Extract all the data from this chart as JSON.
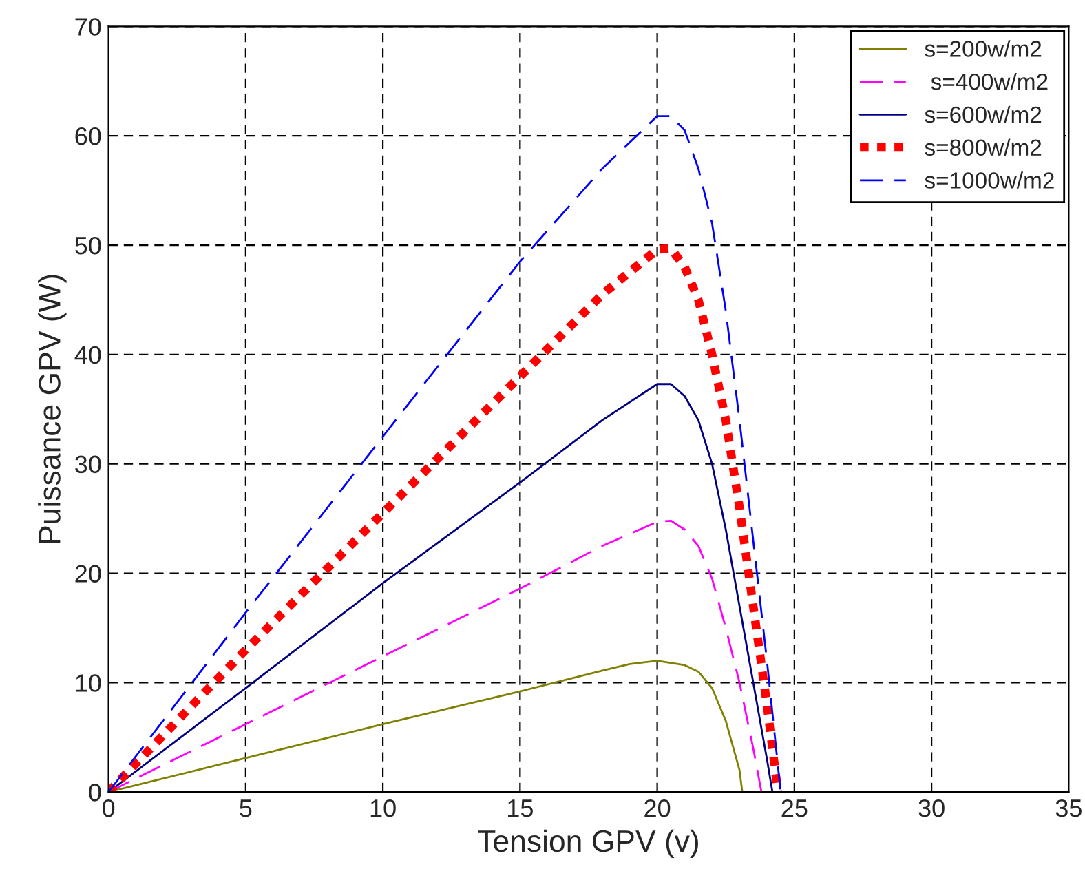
{
  "chart_data": {
    "type": "line",
    "xlabel": "Tension GPV (v)",
    "ylabel": "Puissance GPV (W)",
    "xlim": [
      0,
      35
    ],
    "ylim": [
      0,
      70
    ],
    "xticks": [
      0,
      5,
      10,
      15,
      20,
      25,
      30,
      35
    ],
    "yticks": [
      0,
      10,
      20,
      30,
      40,
      50,
      60,
      70
    ],
    "grid": true,
    "legend": "top right",
    "series": [
      {
        "name": "s=200w/m2",
        "color": "#808000",
        "line_style": "solid",
        "x": [
          0,
          5,
          10,
          15,
          18,
          19,
          20,
          21,
          21.5,
          22,
          22.5,
          23,
          23.1
        ],
        "values": [
          0,
          3.1,
          6.2,
          9.2,
          11.1,
          11.7,
          12.0,
          11.6,
          11.0,
          9.5,
          6.5,
          2,
          0
        ]
      },
      {
        "name": " s=400w/m2",
        "color": "#ff00ff",
        "line_style": "dashed",
        "x": [
          0,
          5,
          10,
          15,
          18,
          20,
          20.5,
          21,
          21.5,
          22,
          22.5,
          23,
          23.5,
          23.8
        ],
        "values": [
          0,
          6.2,
          12.4,
          18.6,
          22.5,
          24.7,
          24.8,
          24,
          22.5,
          19.5,
          15,
          10,
          4,
          0
        ]
      },
      {
        "name": "s=600w/m2",
        "color": "#000080",
        "line_style": "solid",
        "x": [
          0,
          5,
          10,
          15,
          18,
          20,
          20.5,
          21,
          21.5,
          22,
          22.5,
          23,
          23.5,
          24,
          24.2
        ],
        "values": [
          0,
          9.5,
          19.1,
          28.3,
          34,
          37.3,
          37.3,
          36.2,
          34,
          30,
          24,
          17,
          10,
          3,
          0
        ]
      },
      {
        "name": "s=800w/m2",
        "color": "#ff0000",
        "line_style": "dotted",
        "x": [
          0,
          5,
          10,
          15,
          18,
          20,
          20.5,
          21,
          21.5,
          22,
          22.5,
          23,
          23.5,
          24,
          24.4
        ],
        "values": [
          0,
          13,
          25.5,
          38,
          45.5,
          49.6,
          49.7,
          48,
          45,
          40,
          34,
          26,
          17,
          8,
          0
        ]
      },
      {
        "name": "s=1000w/m2",
        "color": "#0000ff",
        "line_style": "dashed",
        "x": [
          0,
          5,
          10,
          15,
          18,
          20,
          20.5,
          21,
          21.5,
          22,
          22.5,
          23,
          23.5,
          24,
          24.5
        ],
        "values": [
          0,
          16.4,
          32.5,
          48.5,
          57,
          61.8,
          61.8,
          60.5,
          57,
          52,
          44,
          34,
          23,
          12,
          0
        ]
      }
    ]
  }
}
